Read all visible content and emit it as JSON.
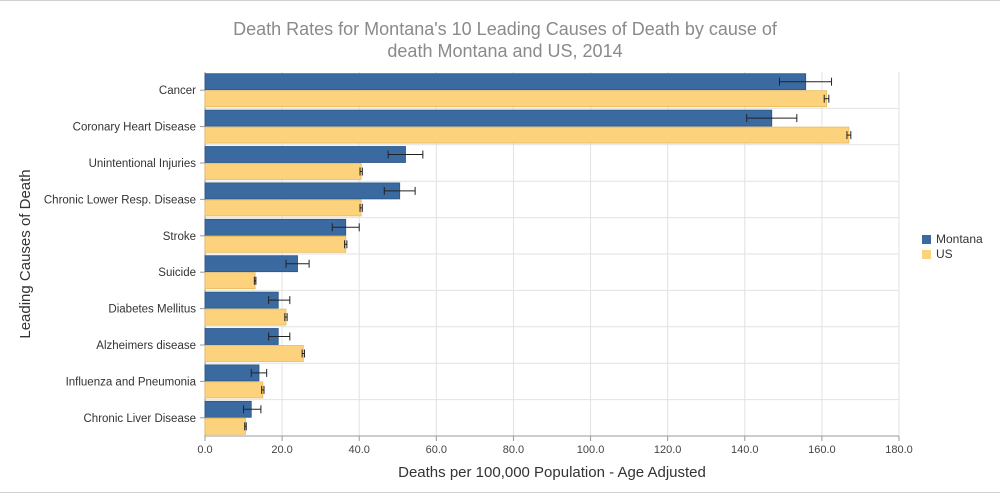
{
  "chart_data": {
    "type": "bar",
    "orientation": "horizontal",
    "title": "Death Rates for Montana's 10 Leading Causes of Death by cause of death Montana and US, 2014",
    "title_lines": [
      "Death Rates for Montana's 10 Leading Causes of Death by cause of",
      "death Montana and US, 2014"
    ],
    "xlabel": "Deaths per 100,000 Population - Age Adjusted",
    "ylabel": "Leading Causes of Death",
    "xlim": [
      0,
      180
    ],
    "xticks": [
      "0.0",
      "20.0",
      "40.0",
      "60.0",
      "80.0",
      "100.0",
      "120.0",
      "140.0",
      "160.0",
      "180.0"
    ],
    "grid": true,
    "legend_position": "right",
    "categories": [
      "Cancer",
      "Coronary Heart Disease",
      "Unintentional Injuries",
      "Chronic Lower Resp. Disease",
      "Stroke",
      "Suicide",
      "Diabetes Mellitus",
      "Alzheimers disease",
      "Influenza and Pneumonia",
      "Chronic Liver Disease"
    ],
    "series": [
      {
        "name": "Montana",
        "color": "#3a6aa0",
        "values": [
          155.8,
          147.0,
          52.0,
          50.5,
          36.5,
          24.0,
          19.0,
          19.0,
          14.0,
          12.0
        ],
        "error_low": [
          149.0,
          140.5,
          47.5,
          46.5,
          33.0,
          21.0,
          16.5,
          16.5,
          12.0,
          10.0
        ],
        "error_high": [
          162.5,
          153.5,
          56.5,
          54.5,
          40.0,
          27.0,
          22.0,
          22.0,
          16.0,
          14.5
        ]
      },
      {
        "name": "US",
        "color": "#fdd27c",
        "values": [
          161.2,
          167.0,
          40.5,
          40.5,
          36.5,
          13.0,
          21.0,
          25.5,
          15.0,
          10.5
        ],
        "error_low": [
          160.6,
          166.5,
          40.2,
          40.2,
          36.2,
          12.8,
          20.7,
          25.2,
          14.7,
          10.3
        ],
        "error_high": [
          161.8,
          167.5,
          40.8,
          40.8,
          36.8,
          13.2,
          21.3,
          25.8,
          15.3,
          10.7
        ]
      }
    ]
  }
}
